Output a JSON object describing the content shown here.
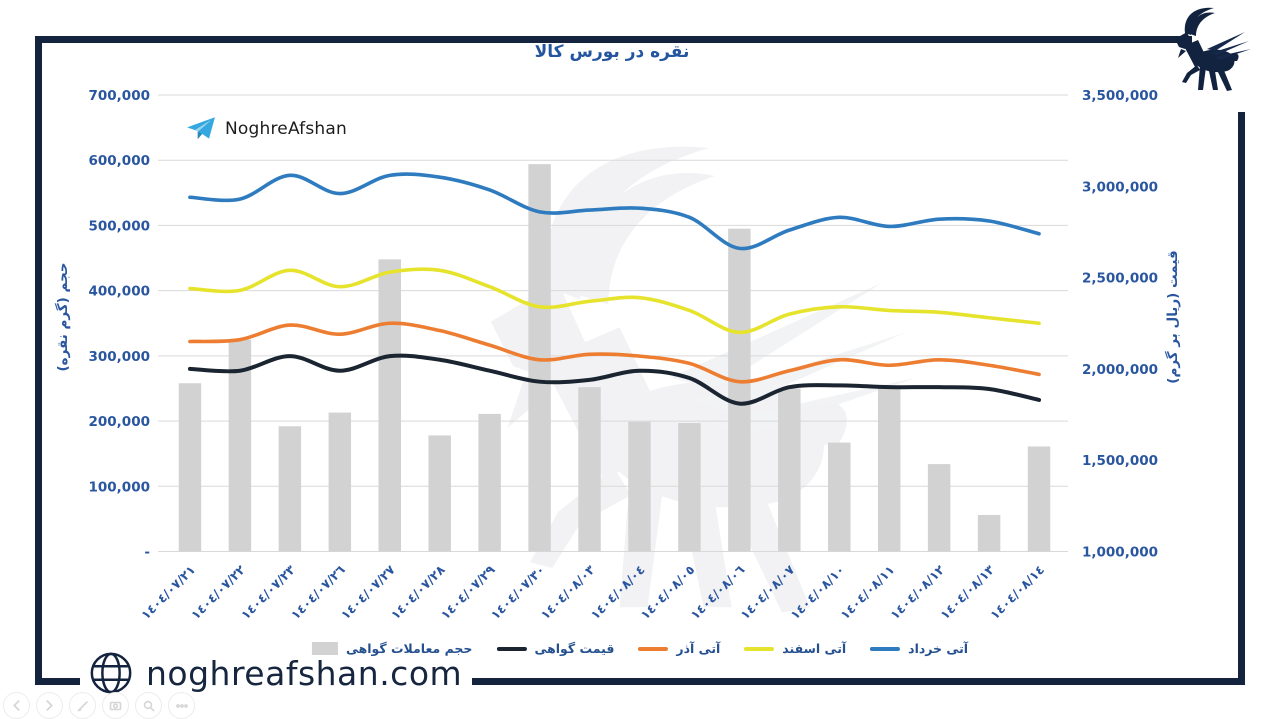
{
  "title": "نقره در بورس کالا",
  "brand": {
    "telegram_handle": "NoghreAfshan",
    "website": "noghreafshan.com",
    "logo": "winged-ibex"
  },
  "colors": {
    "frame": "#14243f",
    "tick_text": "#2a56a0",
    "grid": "#d9d9d9",
    "bar": "#d2d2d2",
    "line_certificate": "#1b2531",
    "line_azar": "#ed7d31",
    "line_esfand": "#e6e32d",
    "line_khordad": "#2e7bbf"
  },
  "axes": {
    "left_title": "حجم (گرم نقره)",
    "right_title": "قیمت (ریال بر گرم)",
    "left_tick_labels": [
      "700,000",
      "600,000",
      "500,000",
      "400,000",
      "300,000",
      "200,000",
      "100,000",
      "-"
    ],
    "right_tick_labels": [
      "3,500,000",
      "3,000,000",
      "2,500,000",
      "2,000,000",
      "1,500,000",
      "1,000,000"
    ],
    "left_range": [
      0,
      700000
    ],
    "right_range": [
      1000000,
      3500000
    ]
  },
  "legend": {
    "items": [
      {
        "label": "حجم معاملات گواهی",
        "marker": "bar",
        "color": "#d2d2d2"
      },
      {
        "label": "قیمت گواهی",
        "marker": "line",
        "color": "#1b2531"
      },
      {
        "label": "آتی آذر",
        "marker": "line",
        "color": "#ed7d31"
      },
      {
        "label": "آتی اسفند",
        "marker": "line",
        "color": "#e6e32d"
      },
      {
        "label": "آتی خرداد",
        "marker": "line",
        "color": "#2e7bbf"
      }
    ]
  },
  "chart_data": [
    {
      "type": "bar",
      "name": "حجم معاملات گواهی",
      "axis": "left",
      "ylabel": "حجم (گرم نقره)",
      "ylim": [
        0,
        700000
      ],
      "color": "#d2d2d2",
      "categories": [
        "١٤٠٤/٠٧/٢١",
        "١٤٠٤/٠٧/٢٢",
        "١٤٠٤/٠٧/٢٣",
        "١٤٠٤/٠٧/٢٦",
        "١٤٠٤/٠٧/٢٧",
        "١٤٠٤/٠٧/٢٨",
        "١٤٠٤/٠٧/٢٩",
        "١٤٠٤/٠٧/٣٠",
        "١٤٠٤/٠٨/٠٣",
        "١٤٠٤/٠٨/٠٤",
        "١٤٠٤/٠٨/٠٥",
        "١٤٠٤/٠٨/٠٦",
        "١٤٠٤/٠٨/٠٧",
        "١٤٠٤/٠٨/١٠",
        "١٤٠٤/٠٨/١١",
        "١٤٠٤/٠٨/١٢",
        "١٤٠٤/٠٨/١٣",
        "١٤٠٤/٠٨/١٤"
      ],
      "values": [
        258000,
        325000,
        192000,
        213000,
        448000,
        178000,
        211000,
        594000,
        252000,
        199000,
        197000,
        495000,
        250000,
        167000,
        252000,
        134000,
        56000,
        161000
      ]
    },
    {
      "type": "line",
      "axis": "right",
      "ylabel": "قیمت (ریال بر گرم)",
      "ylim": [
        1000000,
        3500000
      ],
      "categories": [
        "١٤٠٤/٠٧/٢١",
        "١٤٠٤/٠٧/٢٢",
        "١٤٠٤/٠٧/٢٣",
        "١٤٠٤/٠٧/٢٦",
        "١٤٠٤/٠٧/٢٧",
        "١٤٠٤/٠٧/٢٨",
        "١٤٠٤/٠٧/٢٩",
        "١٤٠٤/٠٧/٣٠",
        "١٤٠٤/٠٨/٠٣",
        "١٤٠٤/٠٨/٠٤",
        "١٤٠٤/٠٨/٠٥",
        "١٤٠٤/٠٨/٠٦",
        "١٤٠٤/٠٨/٠٧",
        "١٤٠٤/٠٨/١٠",
        "١٤٠٤/٠٨/١١",
        "١٤٠٤/٠٨/١٢",
        "١٤٠٤/٠٨/١٣",
        "١٤٠٤/٠٨/١٤"
      ],
      "series": [
        {
          "name": "آتی خرداد",
          "color": "#2e7bbf",
          "width": 3.6,
          "values": [
            2940000,
            2930000,
            3060000,
            2960000,
            3060000,
            3050000,
            2980000,
            2860000,
            2870000,
            2880000,
            2830000,
            2660000,
            2760000,
            2830000,
            2780000,
            2820000,
            2810000,
            2740000
          ]
        },
        {
          "name": "آتی اسفند",
          "color": "#e6e32d",
          "width": 3.6,
          "values": [
            2440000,
            2430000,
            2540000,
            2450000,
            2530000,
            2540000,
            2450000,
            2340000,
            2370000,
            2390000,
            2320000,
            2200000,
            2300000,
            2340000,
            2320000,
            2310000,
            2280000,
            2250000
          ]
        },
        {
          "name": "آتی آذر",
          "color": "#ed7d31",
          "width": 3.6,
          "values": [
            2150000,
            2160000,
            2240000,
            2190000,
            2250000,
            2210000,
            2130000,
            2050000,
            2080000,
            2070000,
            2030000,
            1930000,
            1990000,
            2050000,
            2020000,
            2050000,
            2020000,
            1970000
          ]
        },
        {
          "name": "قیمت گواهی",
          "color": "#1b2531",
          "width": 4,
          "values": [
            2000000,
            1990000,
            2070000,
            1990000,
            2070000,
            2050000,
            1990000,
            1930000,
            1940000,
            1990000,
            1950000,
            1810000,
            1900000,
            1910000,
            1900000,
            1900000,
            1890000,
            1830000
          ]
        }
      ]
    }
  ],
  "viewer_toolbar": {
    "icons": [
      "previous",
      "next",
      "edit",
      "screenshot",
      "search",
      "more"
    ]
  }
}
